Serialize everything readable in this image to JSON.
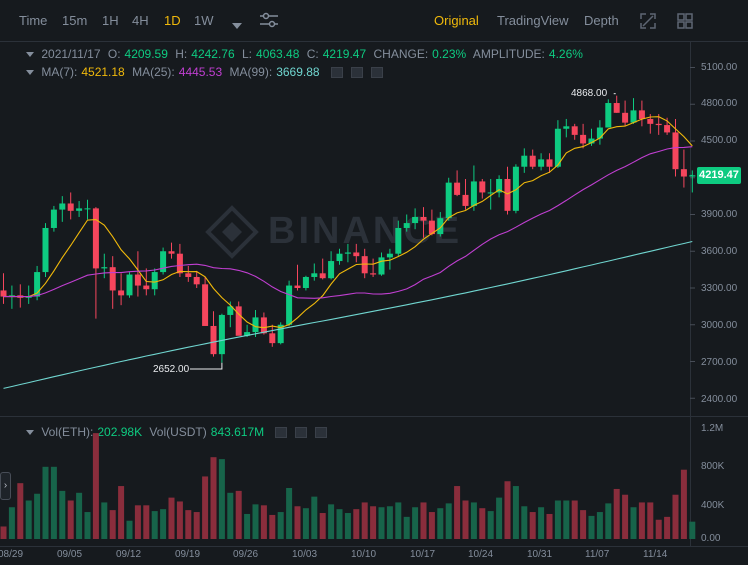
{
  "toolbar": {
    "intervals": [
      "Time",
      "15m",
      "1H",
      "4H",
      "1D",
      "1W"
    ],
    "active_interval": "1D",
    "views": [
      "Original",
      "TradingView",
      "Depth"
    ],
    "active_view": "Original"
  },
  "ohlc": {
    "date": "2021/11/17",
    "open_label": "O:",
    "open": "4209.59",
    "high_label": "H:",
    "high": "4242.76",
    "low_label": "L:",
    "low": "4063.48",
    "close_label": "C:",
    "close": "4219.47",
    "change_label": "CHANGE:",
    "change": "0.23%",
    "amplitude_label": "AMPLITUDE:",
    "amplitude": "4.26%"
  },
  "ma": {
    "ma7_label": "MA(7):",
    "ma7": "4521.18",
    "ma25_label": "MA(25):",
    "ma25": "4445.53",
    "ma99_label": "MA(99):",
    "ma99": "3669.88"
  },
  "volume": {
    "eth_label": "Vol(ETH):",
    "eth": "202.98K",
    "usdt_label": "Vol(USDT)",
    "usdt": "843.617M"
  },
  "price_axis": [
    "5100.00",
    "4800.00",
    "4500.00",
    "4200.00",
    "3900.00",
    "3600.00",
    "3300.00",
    "3000.00",
    "2700.00",
    "2400.00"
  ],
  "current_price": "4219.47",
  "volume_axis": [
    "1.2M",
    "800K",
    "400K",
    "0.00"
  ],
  "date_axis": [
    "08/29",
    "09/05",
    "09/12",
    "09/19",
    "09/26",
    "10/03",
    "10/10",
    "10/17",
    "10/24",
    "10/31",
    "11/07",
    "11/14"
  ],
  "markers": {
    "high": "4868.00",
    "low": "2652.00"
  },
  "watermark": "BINANCE",
  "colors": {
    "up": "#0ecb81",
    "down": "#f6465d",
    "ma7": "#f0b90b",
    "ma25": "#c03fd1",
    "ma99": "#70d6d0",
    "accent": "#f0b90b"
  },
  "chart_data": {
    "type": "candlestick",
    "x": [
      "08/27",
      "08/28",
      "08/29",
      "08/30",
      "08/31",
      "09/01",
      "09/02",
      "09/03",
      "09/04",
      "09/05",
      "09/06",
      "09/07",
      "09/08",
      "09/09",
      "09/10",
      "09/11",
      "09/12",
      "09/13",
      "09/14",
      "09/15",
      "09/16",
      "09/17",
      "09/18",
      "09/19",
      "09/20",
      "09/21",
      "09/22",
      "09/23",
      "09/24",
      "09/25",
      "09/26",
      "09/27",
      "09/28",
      "09/29",
      "09/30",
      "10/01",
      "10/02",
      "10/03",
      "10/04",
      "10/05",
      "10/06",
      "10/07",
      "10/08",
      "10/09",
      "10/10",
      "10/11",
      "10/12",
      "10/13",
      "10/14",
      "10/15",
      "10/16",
      "10/17",
      "10/18",
      "10/19",
      "10/20",
      "10/21",
      "10/22",
      "10/23",
      "10/24",
      "10/25",
      "10/26",
      "10/27",
      "10/28",
      "10/29",
      "10/30",
      "10/31",
      "11/01",
      "11/02",
      "11/03",
      "11/04",
      "11/05",
      "11/06",
      "11/07",
      "11/08",
      "11/09",
      "11/10",
      "11/11",
      "11/12",
      "11/13",
      "11/14",
      "11/15",
      "11/16",
      "11/17"
    ],
    "open": [
      3280,
      3230,
      3240,
      3220,
      3230,
      3430,
      3790,
      3940,
      3990,
      3930,
      3950,
      3950,
      3460,
      3470,
      3280,
      3240,
      3410,
      3320,
      3290,
      3430,
      3600,
      3580,
      3420,
      3390,
      3330,
      2990,
      2760,
      3080,
      3150,
      2910,
      2940,
      3060,
      2930,
      2850,
      3000,
      3320,
      3300,
      3390,
      3420,
      3380,
      3520,
      3580,
      3590,
      3560,
      3420,
      3410,
      3550,
      3580,
      3790,
      3830,
      3880,
      3850,
      3740,
      3870,
      4160,
      4060,
      3970,
      4170,
      4080,
      4080,
      4190,
      3930,
      4290,
      4380,
      4290,
      4350,
      4290,
      4600,
      4620,
      4550,
      4480,
      4520,
      4610,
      4810,
      4730,
      4650,
      4750,
      4680,
      4640,
      4630,
      4570,
      4270,
      4210
    ],
    "high": [
      3420,
      3320,
      3330,
      3320,
      3480,
      3830,
      3970,
      4050,
      4080,
      4010,
      4020,
      3960,
      3580,
      3560,
      3420,
      3430,
      3600,
      3460,
      3460,
      3630,
      3670,
      3660,
      3480,
      3440,
      3390,
      3110,
      3090,
      3190,
      3190,
      3000,
      3120,
      3100,
      3000,
      3020,
      3360,
      3490,
      3400,
      3500,
      3540,
      3600,
      3620,
      3660,
      3660,
      3620,
      3540,
      3590,
      3620,
      3850,
      3900,
      3950,
      3960,
      3940,
      3920,
      4200,
      4260,
      4190,
      4300,
      4190,
      4190,
      4220,
      4290,
      4310,
      4440,
      4430,
      4400,
      4400,
      4670,
      4680,
      4640,
      4640,
      4600,
      4670,
      4840,
      4870,
      4830,
      4850,
      4830,
      4720,
      4720,
      4690,
      4680,
      4430,
      4260
    ],
    "low": [
      3170,
      3130,
      3140,
      3170,
      3200,
      3390,
      3760,
      3840,
      3860,
      3880,
      3860,
      3050,
      3380,
      3130,
      3160,
      3220,
      3230,
      3240,
      3240,
      3410,
      3540,
      3390,
      3350,
      3300,
      2990,
      2740,
      2690,
      2980,
      2920,
      2900,
      2900,
      2920,
      2820,
      2840,
      2990,
      3280,
      3280,
      3360,
      3370,
      3370,
      3490,
      3510,
      3510,
      3380,
      3390,
      3400,
      3450,
      3560,
      3760,
      3780,
      3710,
      3730,
      3720,
      3850,
      4050,
      3940,
      3930,
      4030,
      3940,
      4040,
      3900,
      3910,
      4240,
      4270,
      4260,
      4240,
      4280,
      4530,
      4510,
      4440,
      4460,
      4470,
      4610,
      4730,
      4620,
      4640,
      4620,
      4560,
      4550,
      4550,
      4210,
      4120,
      4080
    ],
    "close": [
      3230,
      3240,
      3220,
      3230,
      3430,
      3790,
      3940,
      3990,
      3930,
      3950,
      3950,
      3460,
      3470,
      3280,
      3240,
      3410,
      3320,
      3290,
      3430,
      3600,
      3580,
      3420,
      3390,
      3330,
      2990,
      2760,
      3080,
      3150,
      2910,
      2940,
      3060,
      2930,
      2850,
      3000,
      3320,
      3300,
      3390,
      3420,
      3380,
      3520,
      3580,
      3590,
      3560,
      3420,
      3410,
      3550,
      3580,
      3790,
      3830,
      3880,
      3850,
      3740,
      3870,
      4160,
      4060,
      3970,
      4170,
      4080,
      4080,
      4190,
      3930,
      4290,
      4380,
      4290,
      4350,
      4290,
      4600,
      4620,
      4550,
      4480,
      4520,
      4610,
      4810,
      4730,
      4650,
      4750,
      4680,
      4640,
      4630,
      4570,
      4270,
      4210,
      4220
    ],
    "volume": [
      130000,
      330000,
      580000,
      400000,
      470000,
      750000,
      750000,
      500000,
      400000,
      480000,
      280000,
      1100000,
      380000,
      300000,
      550000,
      190000,
      350000,
      350000,
      290000,
      310000,
      430000,
      390000,
      300000,
      280000,
      650000,
      850000,
      830000,
      480000,
      500000,
      260000,
      360000,
      350000,
      250000,
      280000,
      530000,
      340000,
      320000,
      440000,
      270000,
      360000,
      310000,
      270000,
      310000,
      380000,
      340000,
      330000,
      340000,
      380000,
      230000,
      330000,
      380000,
      280000,
      320000,
      370000,
      550000,
      400000,
      380000,
      320000,
      290000,
      430000,
      600000,
      550000,
      340000,
      280000,
      330000,
      260000,
      400000,
      400000,
      400000,
      300000,
      240000,
      280000,
      370000,
      520000,
      460000,
      330000,
      380000,
      380000,
      200000,
      230000,
      460000,
      720000,
      180000
    ]
  }
}
